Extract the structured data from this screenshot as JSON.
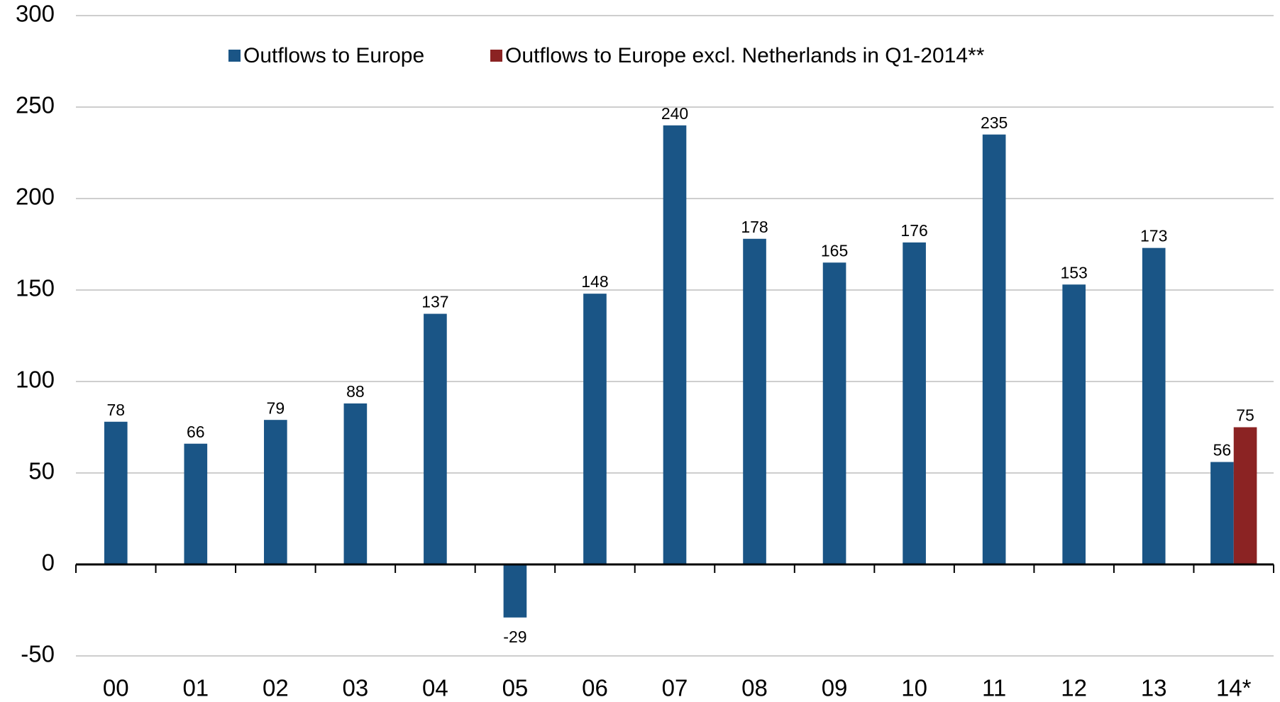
{
  "chart_data": {
    "type": "bar",
    "categories": [
      "00",
      "01",
      "02",
      "03",
      "04",
      "05",
      "06",
      "07",
      "08",
      "09",
      "10",
      "11",
      "12",
      "13",
      "14*"
    ],
    "series": [
      {
        "name": "Outflows to Europe",
        "color": "#1a5586",
        "values": [
          78,
          66,
          79,
          88,
          137,
          -29,
          148,
          240,
          178,
          165,
          176,
          235,
          153,
          173,
          56
        ]
      },
      {
        "name": "Outflows to Europe excl. Netherlands in Q1-2014**",
        "color": "#8b2323",
        "values": [
          null,
          null,
          null,
          null,
          null,
          null,
          null,
          null,
          null,
          null,
          null,
          null,
          null,
          null,
          75
        ]
      }
    ],
    "ylim": [
      -50,
      300
    ],
    "yticks": [
      -50,
      0,
      50,
      100,
      150,
      200,
      250,
      300
    ],
    "grid": true
  }
}
